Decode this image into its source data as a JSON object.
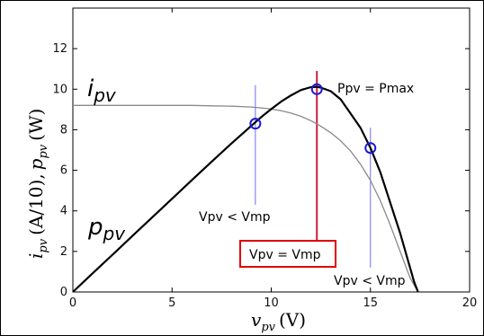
{
  "chart_data": {
    "type": "line",
    "xlabel_main": "v",
    "xlabel_sub": "pv",
    "xlabel_unit": "(V)",
    "ylabel_i": "i",
    "ylabel_i_sub": "pv",
    "ylabel_mid": "(A/10),",
    "ylabel_p": "p",
    "ylabel_p_sub": "pv",
    "ylabel_unit": "(W)",
    "xlim": [
      0,
      20
    ],
    "ylim": [
      0,
      14
    ],
    "xticks": [
      0,
      5,
      10,
      15,
      20
    ],
    "yticks": [
      0,
      2,
      4,
      6,
      8,
      10,
      12
    ],
    "grid": false,
    "series": [
      {
        "name": "ipv",
        "name_main": "i",
        "name_sub": "pv",
        "color": "#8a8a8a",
        "x": [
          0,
          2,
          4,
          6,
          7,
          8,
          9,
          9.5,
          10,
          10.5,
          11,
          11.5,
          12,
          12.5,
          13,
          13.5,
          14,
          14.5,
          15,
          15.5,
          16,
          16.5,
          17,
          17.4
        ],
        "y": [
          9.2,
          9.2,
          9.2,
          9.2,
          9.18,
          9.16,
          9.12,
          9.08,
          9.02,
          8.94,
          8.82,
          8.66,
          8.45,
          8.18,
          7.85,
          7.45,
          6.95,
          6.3,
          5.5,
          4.5,
          3.3,
          2.0,
          0.7,
          0
        ]
      },
      {
        "name": "ppv",
        "name_main": "p",
        "name_sub": "pv",
        "color": "#000000",
        "x": [
          0,
          1,
          2,
          3,
          4,
          5,
          6,
          7,
          8,
          9,
          9.5,
          10,
          10.5,
          11,
          11.5,
          12,
          12.3,
          12.5,
          13,
          13.5,
          14,
          14.5,
          15,
          15.5,
          16,
          16.5,
          17,
          17.2,
          17.4
        ],
        "y": [
          0,
          0.92,
          1.84,
          2.76,
          3.68,
          4.6,
          5.52,
          6.43,
          7.33,
          8.2,
          8.63,
          9.02,
          9.39,
          9.7,
          9.96,
          10.1,
          10.12,
          10.08,
          9.9,
          9.5,
          8.8,
          8.1,
          7.1,
          5.9,
          4.4,
          2.9,
          1.2,
          0.5,
          0
        ]
      }
    ],
    "markers": [
      {
        "x": 9.2,
        "y": 8.3
      },
      {
        "x": 12.3,
        "y": 10.0
      },
      {
        "x": 15.0,
        "y": 7.1
      }
    ],
    "vlines": [
      {
        "x": 9.2,
        "y0": 4.3,
        "y1": 10.2,
        "color": "#6f6ff0"
      },
      {
        "x": 12.3,
        "y0": 1.6,
        "y1": 10.9,
        "color": "#cc1f3a"
      },
      {
        "x": 15.0,
        "y0": 1.2,
        "y1": 8.1,
        "color": "#6f6ff0"
      }
    ],
    "annotations": {
      "pmax": "Ppv = Pmax",
      "left": "Vpv < Vmp",
      "center": "Vpv = Vmp",
      "right": "Vpv < Vmp"
    },
    "colors": {
      "marker": "#1a1ad6",
      "center_box": "#e00000"
    }
  }
}
